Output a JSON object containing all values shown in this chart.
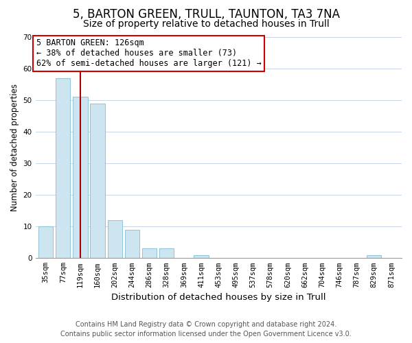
{
  "title": "5, BARTON GREEN, TRULL, TAUNTON, TA3 7NA",
  "subtitle": "Size of property relative to detached houses in Trull",
  "xlabel": "Distribution of detached houses by size in Trull",
  "ylabel": "Number of detached properties",
  "bar_labels": [
    "35sqm",
    "77sqm",
    "119sqm",
    "160sqm",
    "202sqm",
    "244sqm",
    "286sqm",
    "328sqm",
    "369sqm",
    "411sqm",
    "453sqm",
    "495sqm",
    "537sqm",
    "578sqm",
    "620sqm",
    "662sqm",
    "704sqm",
    "746sqm",
    "787sqm",
    "829sqm",
    "871sqm"
  ],
  "bar_values": [
    10,
    57,
    51,
    49,
    12,
    9,
    3,
    3,
    0,
    1,
    0,
    0,
    0,
    0,
    0,
    0,
    0,
    0,
    0,
    1,
    0
  ],
  "bar_color": "#cce5f0",
  "bar_edge_color": "#7fbcd4",
  "highlight_bar_index": 2,
  "highlight_line_color": "#aa0000",
  "ylim": [
    0,
    70
  ],
  "yticks": [
    0,
    10,
    20,
    30,
    40,
    50,
    60,
    70
  ],
  "annotation_text": "5 BARTON GREEN: 126sqm\n← 38% of detached houses are smaller (73)\n62% of semi-detached houses are larger (121) →",
  "annotation_box_color": "#ffffff",
  "annotation_box_edge": "#cc0000",
  "footer_line1": "Contains HM Land Registry data © Crown copyright and database right 2024.",
  "footer_line2": "Contains public sector information licensed under the Open Government Licence v3.0.",
  "background_color": "#ffffff",
  "grid_color": "#c8d4e8",
  "title_fontsize": 12,
  "subtitle_fontsize": 10,
  "xlabel_fontsize": 9.5,
  "ylabel_fontsize": 8.5,
  "tick_fontsize": 7.5,
  "annotation_fontsize": 8.5,
  "footer_fontsize": 7
}
